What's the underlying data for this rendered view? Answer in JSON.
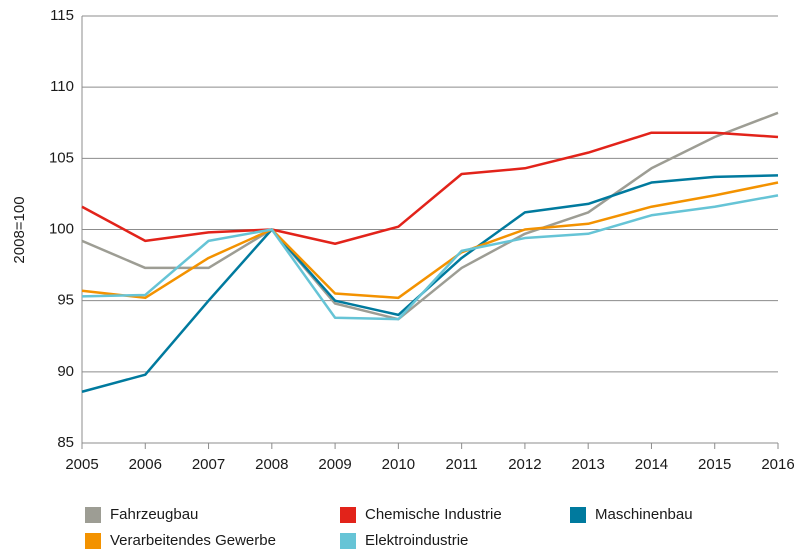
{
  "chart_data": {
    "type": "line",
    "y_label": "2008=100",
    "x": [
      2005,
      2006,
      2007,
      2008,
      2009,
      2010,
      2011,
      2012,
      2013,
      2014,
      2015,
      2016
    ],
    "xlim": [
      2005,
      2016
    ],
    "xticks": [
      2005,
      2006,
      2007,
      2008,
      2009,
      2010,
      2011,
      2012,
      2013,
      2014,
      2015,
      2016
    ],
    "ylim": [
      85,
      115
    ],
    "yticks": [
      85,
      90,
      95,
      100,
      105,
      110,
      115
    ],
    "grid": true,
    "legend": "bottom",
    "series": [
      {
        "name": "Fahrzeugbau",
        "color": "#9d9d94",
        "values": [
          99.2,
          97.3,
          97.3,
          100,
          94.8,
          93.7,
          97.3,
          99.7,
          101.2,
          104.3,
          106.5,
          108.2
        ]
      },
      {
        "name": "Chemische Industrie",
        "color": "#e2231a",
        "values": [
          101.6,
          99.2,
          99.8,
          100,
          99.0,
          100.2,
          103.9,
          104.3,
          105.4,
          106.8,
          106.8,
          106.5
        ]
      },
      {
        "name": "Maschinenbau",
        "color": "#007a9e",
        "values": [
          88.6,
          89.8,
          95.0,
          100,
          95.0,
          94.0,
          98.0,
          101.2,
          101.8,
          103.3,
          103.7,
          103.8
        ]
      },
      {
        "name": "Verarbeitendes Gewerbe",
        "color": "#f39200",
        "values": [
          95.7,
          95.2,
          98.0,
          100,
          95.5,
          95.2,
          98.4,
          100.0,
          100.4,
          101.6,
          102.4,
          103.3
        ]
      },
      {
        "name": "Elektroindustrie",
        "color": "#66c4d6",
        "values": [
          95.3,
          95.4,
          99.2,
          100,
          93.8,
          93.7,
          98.5,
          99.4,
          99.7,
          101.0,
          101.6,
          102.4
        ]
      }
    ]
  }
}
